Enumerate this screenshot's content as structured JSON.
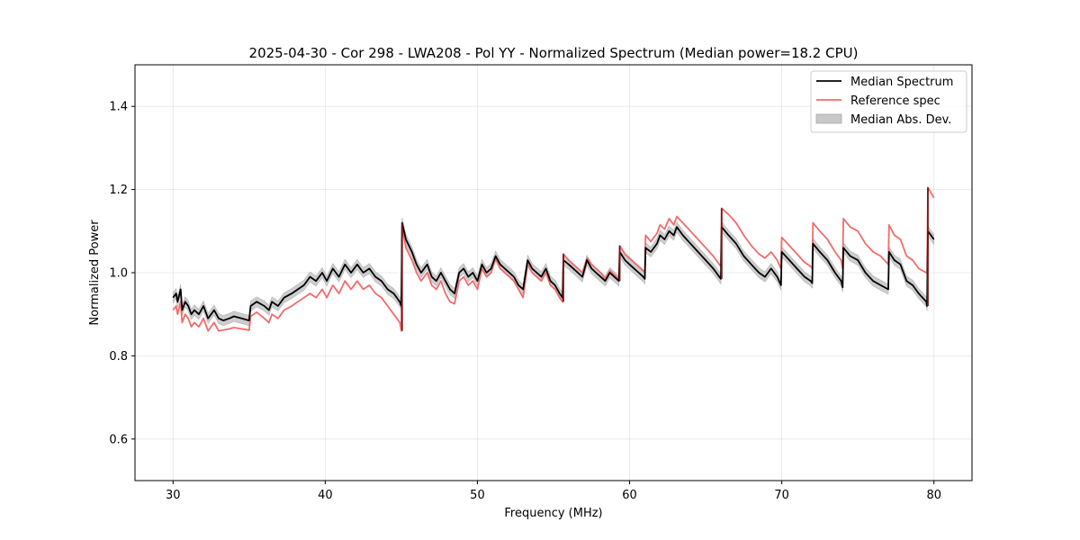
{
  "chart_data": {
    "type": "line",
    "title": "2025-04-30 - Cor 298 - LWA208 - Pol YY - Normalized Spectrum (Median power=18.2 CPU)",
    "xlabel": "Frequency (MHz)",
    "ylabel": "Normalized Power",
    "xlim": [
      27.5,
      82.5
    ],
    "ylim": [
      0.5,
      1.5
    ],
    "xticks": [
      30,
      40,
      50,
      60,
      70,
      80
    ],
    "yticks": [
      0.6,
      0.8,
      1.0,
      1.2,
      1.4
    ],
    "xtick_labels": [
      "30",
      "40",
      "50",
      "60",
      "70",
      "80"
    ],
    "ytick_labels": [
      "0.6",
      "0.8",
      "1.0",
      "1.2",
      "1.4"
    ],
    "grid": true,
    "legend_position": "upper-right",
    "colors": {
      "median": "#000000",
      "reference": "#f26b6b",
      "mad_band": "#bdbdbd",
      "overlap": "#7a1414"
    },
    "mad_halfwidth": 0.012,
    "series": [
      {
        "name": "Median Spectrum",
        "legend_label": "Median Spectrum",
        "x": [
          30.0,
          30.2,
          30.3,
          30.5,
          30.6,
          30.8,
          31.0,
          31.2,
          31.4,
          31.7,
          32.0,
          32.3,
          32.7,
          33.0,
          33.3,
          33.7,
          34.0,
          34.5,
          35.0,
          35.1,
          35.5,
          36.0,
          36.3,
          36.5,
          36.9,
          37.3,
          37.8,
          38.2,
          38.6,
          39.0,
          39.4,
          39.8,
          40.1,
          40.5,
          40.9,
          41.3,
          41.7,
          42.1,
          42.5,
          42.9,
          43.3,
          43.7,
          44.1,
          44.5,
          44.9,
          45.0,
          45.05,
          45.3,
          45.7,
          46.0,
          46.3,
          46.7,
          47.0,
          47.3,
          47.6,
          47.9,
          48.2,
          48.5,
          48.8,
          49.1,
          49.4,
          49.7,
          50.0,
          50.3,
          50.6,
          50.9,
          51.2,
          51.5,
          51.8,
          52.1,
          52.4,
          52.7,
          53.0,
          53.3,
          53.6,
          53.9,
          54.2,
          54.5,
          54.8,
          55.1,
          55.4,
          55.6,
          55.65,
          56.0,
          56.3,
          56.6,
          56.9,
          57.2,
          57.5,
          57.8,
          58.1,
          58.4,
          58.7,
          59.0,
          59.3,
          59.35,
          59.7,
          60.0,
          60.3,
          60.6,
          60.9,
          61.0,
          61.05,
          61.4,
          61.8,
          62.0,
          62.3,
          62.6,
          62.9,
          63.1,
          63.5,
          64.0,
          64.5,
          65.0,
          65.5,
          65.9,
          66.0,
          66.05,
          66.5,
          67.0,
          67.5,
          68.0,
          68.5,
          68.9,
          69.3,
          69.7,
          69.95,
          70.0,
          70.5,
          71.0,
          71.5,
          71.9,
          72.0,
          72.05,
          72.5,
          73.0,
          73.5,
          73.9,
          74.0,
          74.05,
          74.5,
          75.0,
          75.5,
          76.0,
          76.5,
          77.0,
          77.05,
          77.4,
          77.8,
          78.2,
          78.6,
          79.0,
          79.5,
          79.55,
          79.6,
          80.0
        ],
        "values": [
          0.94,
          0.95,
          0.93,
          0.96,
          0.91,
          0.93,
          0.92,
          0.9,
          0.91,
          0.9,
          0.92,
          0.89,
          0.91,
          0.89,
          0.885,
          0.89,
          0.895,
          0.89,
          0.885,
          0.92,
          0.93,
          0.92,
          0.91,
          0.93,
          0.92,
          0.94,
          0.95,
          0.96,
          0.97,
          0.99,
          0.98,
          1.0,
          0.98,
          1.01,
          0.99,
          1.02,
          1.0,
          1.02,
          1.0,
          1.01,
          0.99,
          0.98,
          0.96,
          0.95,
          0.93,
          0.92,
          1.12,
          1.08,
          1.05,
          1.02,
          1.0,
          1.02,
          0.99,
          0.98,
          1.0,
          0.98,
          0.96,
          0.95,
          1.0,
          1.01,
          0.99,
          1.0,
          0.98,
          1.02,
          1.0,
          1.01,
          1.04,
          1.02,
          1.01,
          1.0,
          0.99,
          0.97,
          0.96,
          1.03,
          1.01,
          1.0,
          0.99,
          1.01,
          0.98,
          0.97,
          0.95,
          0.94,
          1.03,
          1.02,
          1.01,
          1.0,
          0.99,
          1.03,
          1.01,
          1.0,
          0.99,
          0.98,
          1.0,
          0.99,
          0.98,
          1.05,
          1.03,
          1.02,
          1.01,
          1.0,
          0.99,
          0.985,
          1.06,
          1.05,
          1.07,
          1.09,
          1.08,
          1.1,
          1.09,
          1.11,
          1.09,
          1.07,
          1.05,
          1.03,
          1.01,
          0.99,
          0.985,
          1.11,
          1.09,
          1.07,
          1.04,
          1.02,
          1.0,
          0.99,
          1.01,
          0.99,
          0.97,
          1.05,
          1.03,
          1.01,
          0.99,
          0.98,
          0.975,
          1.07,
          1.05,
          1.03,
          1.0,
          0.98,
          0.965,
          1.06,
          1.04,
          1.03,
          1.0,
          0.98,
          0.97,
          0.96,
          1.05,
          1.03,
          1.02,
          0.98,
          0.97,
          0.95,
          0.93,
          0.92,
          1.1,
          1.08
        ]
      },
      {
        "name": "Reference spec",
        "legend_label": "Reference spec",
        "x": [
          30.0,
          30.2,
          30.3,
          30.5,
          30.6,
          30.8,
          31.0,
          31.2,
          31.4,
          31.7,
          32.0,
          32.3,
          32.7,
          33.0,
          33.3,
          33.7,
          34.0,
          34.5,
          35.0,
          35.1,
          35.5,
          36.0,
          36.3,
          36.5,
          36.9,
          37.3,
          37.8,
          38.2,
          38.6,
          39.0,
          39.4,
          39.8,
          40.1,
          40.5,
          40.9,
          41.3,
          41.7,
          42.1,
          42.5,
          42.9,
          43.3,
          43.7,
          44.1,
          44.5,
          44.9,
          45.0,
          45.05,
          45.3,
          45.7,
          46.0,
          46.3,
          46.7,
          47.0,
          47.3,
          47.6,
          47.9,
          48.2,
          48.5,
          48.8,
          49.1,
          49.4,
          49.7,
          50.0,
          50.3,
          50.6,
          50.9,
          51.2,
          51.5,
          51.8,
          52.1,
          52.4,
          52.7,
          53.0,
          53.3,
          53.6,
          53.9,
          54.2,
          54.5,
          54.8,
          55.1,
          55.4,
          55.6,
          55.65,
          56.0,
          56.3,
          56.6,
          56.9,
          57.2,
          57.5,
          57.8,
          58.1,
          58.4,
          58.7,
          59.0,
          59.3,
          59.35,
          59.7,
          60.0,
          60.3,
          60.6,
          60.9,
          61.0,
          61.05,
          61.4,
          61.8,
          62.0,
          62.3,
          62.6,
          62.9,
          63.1,
          63.5,
          64.0,
          64.5,
          65.0,
          65.5,
          65.9,
          66.0,
          66.05,
          66.5,
          67.0,
          67.5,
          68.0,
          68.5,
          68.9,
          69.3,
          69.7,
          69.95,
          70.0,
          70.5,
          71.0,
          71.5,
          71.9,
          72.0,
          72.05,
          72.5,
          73.0,
          73.5,
          73.9,
          74.0,
          74.05,
          74.5,
          75.0,
          75.5,
          76.0,
          76.5,
          77.0,
          77.05,
          77.4,
          77.8,
          78.2,
          78.6,
          79.0,
          79.5,
          79.55,
          79.6,
          80.0
        ],
        "values": [
          0.91,
          0.92,
          0.9,
          0.93,
          0.88,
          0.9,
          0.89,
          0.87,
          0.88,
          0.87,
          0.89,
          0.86,
          0.88,
          0.86,
          0.862,
          0.865,
          0.868,
          0.865,
          0.862,
          0.895,
          0.905,
          0.89,
          0.88,
          0.9,
          0.89,
          0.91,
          0.92,
          0.93,
          0.94,
          0.95,
          0.94,
          0.96,
          0.94,
          0.97,
          0.95,
          0.98,
          0.96,
          0.98,
          0.96,
          0.97,
          0.95,
          0.94,
          0.92,
          0.9,
          0.88,
          0.86,
          1.11,
          1.06,
          1.03,
          1.0,
          0.98,
          1.0,
          0.97,
          0.96,
          0.98,
          0.95,
          0.93,
          0.925,
          0.98,
          0.99,
          0.97,
          0.98,
          0.96,
          1.01,
          0.99,
          1.0,
          1.035,
          1.01,
          1.0,
          0.99,
          0.98,
          0.96,
          0.94,
          1.02,
          1.0,
          0.99,
          0.98,
          1.0,
          0.97,
          0.96,
          0.94,
          0.93,
          1.045,
          1.03,
          1.02,
          1.01,
          1.0,
          1.035,
          1.02,
          1.01,
          1.0,
          0.985,
          1.005,
          0.995,
          0.985,
          1.065,
          1.045,
          1.035,
          1.025,
          1.015,
          1.005,
          1.0,
          1.09,
          1.075,
          1.095,
          1.115,
          1.105,
          1.13,
          1.115,
          1.135,
          1.12,
          1.1,
          1.08,
          1.06,
          1.04,
          1.02,
          1.015,
          1.155,
          1.14,
          1.12,
          1.09,
          1.065,
          1.045,
          1.035,
          1.05,
          1.03,
          1.01,
          1.085,
          1.065,
          1.045,
          1.025,
          1.015,
          1.01,
          1.12,
          1.1,
          1.08,
          1.05,
          1.03,
          1.01,
          1.13,
          1.11,
          1.1,
          1.07,
          1.05,
          1.04,
          1.02,
          1.115,
          1.09,
          1.08,
          1.04,
          1.03,
          1.01,
          1.0,
          1.0,
          1.205,
          1.18
        ]
      }
    ],
    "legend": [
      {
        "label": "Median Spectrum",
        "kind": "line"
      },
      {
        "label": "Reference spec",
        "kind": "line"
      },
      {
        "label": "Median Abs. Dev.",
        "kind": "patch"
      }
    ]
  }
}
